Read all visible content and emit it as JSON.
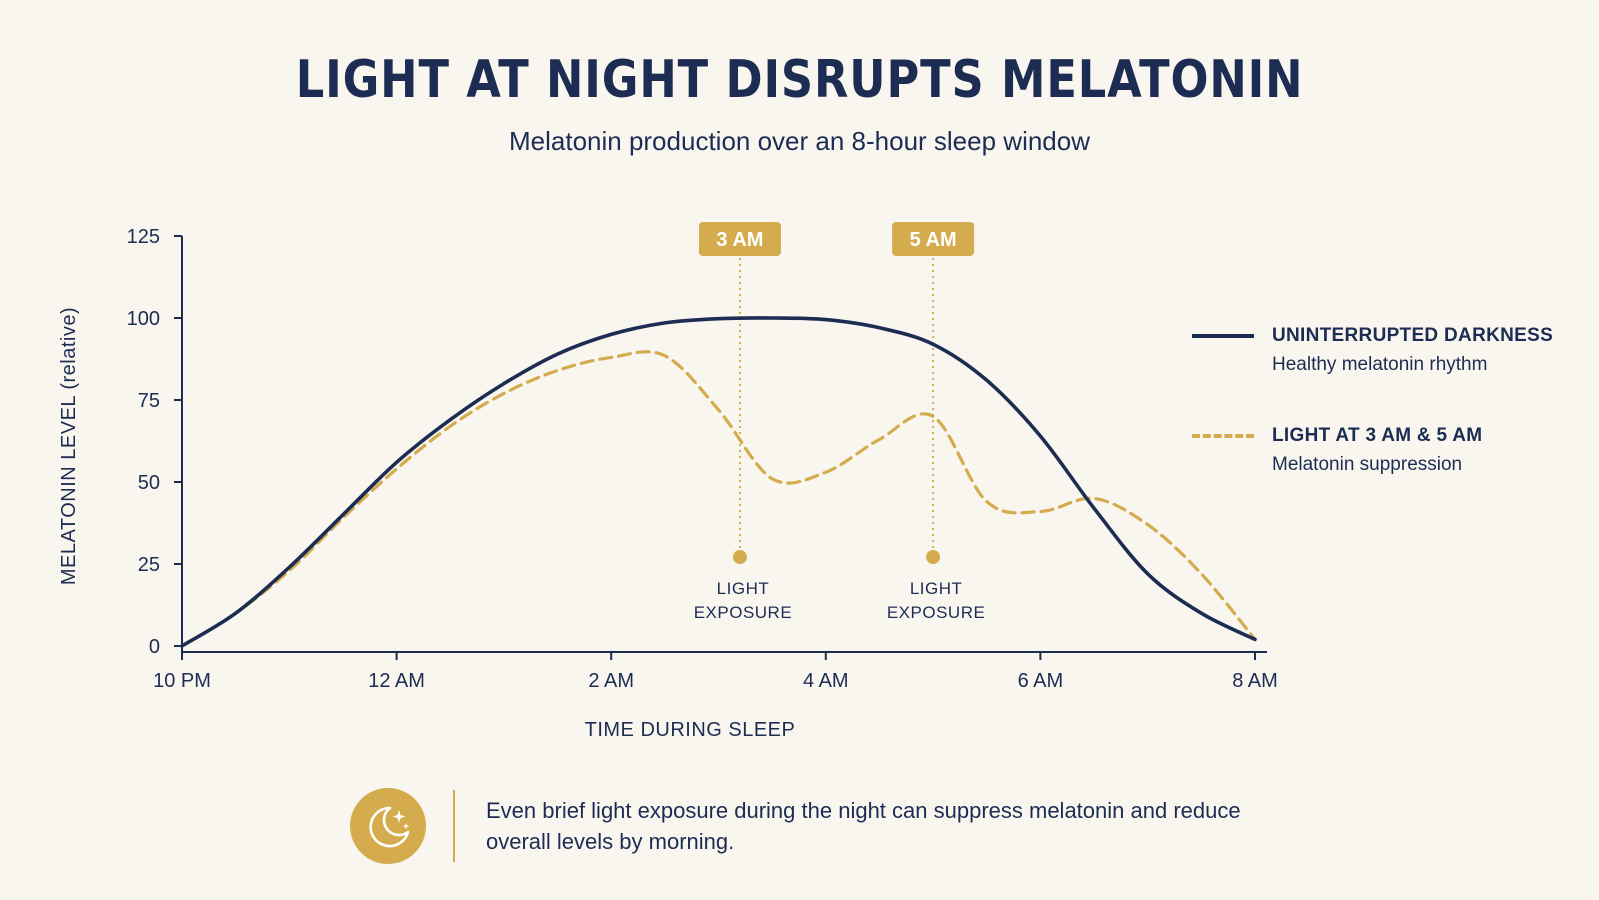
{
  "header": {
    "title": "LIGHT AT NIGHT DISRUPTS MELATONIN",
    "subtitle": "Melatonin production over an 8-hour sleep window"
  },
  "chart_data": {
    "type": "line",
    "title": "LIGHT AT NIGHT DISRUPTS MELATONIN",
    "subtitle": "Melatonin production over an 8-hour sleep window",
    "xlabel": "TIME DURING SLEEP",
    "ylabel": "MELATONIN LEVEL (relative)",
    "x_ticks": [
      "10 PM",
      "12 AM",
      "2 AM",
      "4 AM",
      "6 AM",
      "8 AM"
    ],
    "x_tick_hours": [
      0,
      2,
      4,
      6,
      8,
      10
    ],
    "y_ticks": [
      0,
      25,
      50,
      75,
      100,
      125
    ],
    "ylim": [
      0,
      125
    ],
    "xlim": [
      0,
      10
    ],
    "legend_position": "right",
    "grid": false,
    "series": [
      {
        "name": "UNINTERRUPTED DARKNESS",
        "description": "Healthy melatonin rhythm",
        "style": "solid",
        "color": "#1d2c52",
        "x": [
          0,
          0.5,
          1,
          1.5,
          2,
          2.5,
          3,
          3.5,
          4,
          4.5,
          5,
          5.5,
          6,
          6.5,
          7,
          7.5,
          8,
          8.5,
          9,
          9.5,
          10
        ],
        "y": [
          0,
          10,
          24,
          40,
          56,
          69,
          80,
          89,
          95,
          98.5,
          99.8,
          100,
          99.5,
          97,
          92,
          81,
          64,
          42,
          22,
          10,
          2
        ]
      },
      {
        "name": "LIGHT AT 3 AM & 5 AM",
        "description": "Melatonin suppression",
        "style": "dashed",
        "color": "#d4ac4d",
        "x": [
          0,
          0.5,
          1,
          1.5,
          2,
          2.5,
          3,
          3.5,
          4,
          4.5,
          5,
          5.5,
          6,
          6.5,
          7,
          7.5,
          8,
          8.5,
          9,
          9.5,
          10
        ],
        "y": [
          0,
          10,
          23,
          39,
          54,
          67,
          77,
          84,
          88,
          88.5,
          72,
          51,
          53,
          63,
          70,
          44,
          41,
          45,
          37,
          22,
          2
        ]
      }
    ],
    "annotations": [
      {
        "label": "3 AM",
        "note": "LIGHT\nEXPOSURE",
        "x": 5.2
      },
      {
        "label": "5 AM",
        "note": "LIGHT\nEXPOSURE",
        "x": 7
      }
    ]
  },
  "legend": {
    "items": [
      {
        "name": "UNINTERRUPTED DARKNESS",
        "desc": "Healthy melatonin rhythm"
      },
      {
        "name": "LIGHT AT 3 AM & 5 AM",
        "desc": "Melatonin suppression"
      }
    ]
  },
  "footer": {
    "icon": "moon-stars-icon",
    "text": "Even brief light exposure during the night can suppress melatonin and reduce overall levels by morning."
  },
  "colors": {
    "navy": "#1d2c52",
    "gold": "#d4ac4d",
    "background": "#f9f6f0"
  }
}
